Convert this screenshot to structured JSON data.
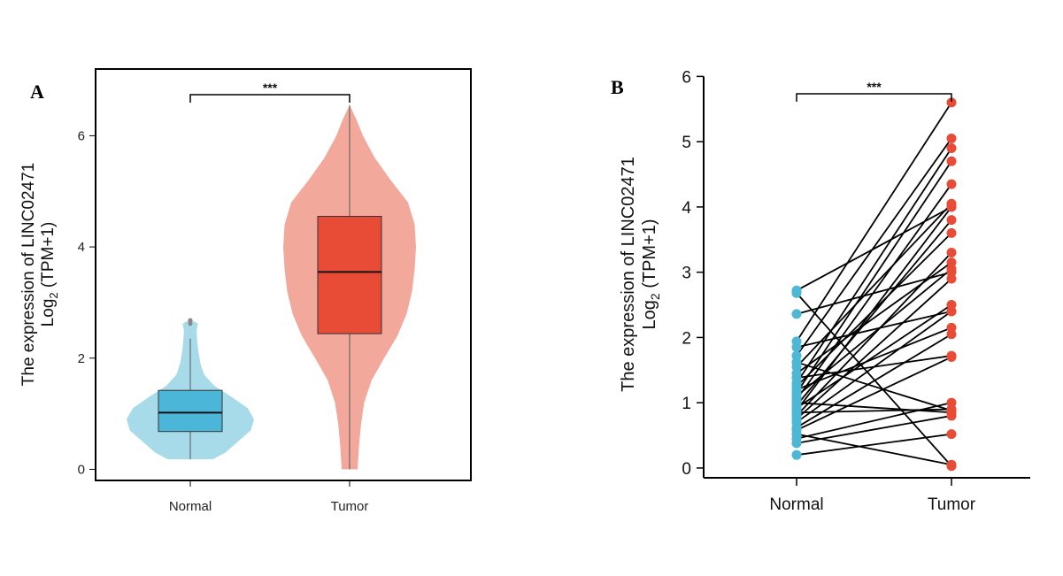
{
  "chart_data": [
    {
      "panel": "A",
      "type": "violin",
      "ylabel_line1": "The expression of LINC02471",
      "ylabel_line2_prefix": "Log",
      "ylabel_line2_sub": "2",
      "ylabel_line2_suffix": " (TPM+1)",
      "categories": [
        "Normal",
        "Tumor"
      ],
      "ylim": [
        -0.2,
        7.2
      ],
      "yticks": [
        0,
        2,
        4,
        6
      ],
      "significance": "***",
      "groups": [
        {
          "name": "Normal",
          "color_violin": "#a8dbea",
          "color_box": "#4cb6d8",
          "min": 0.18,
          "q1": 0.68,
          "median": 1.02,
          "q3": 1.42,
          "whisker_high": 2.35,
          "outliers": [
            2.62,
            2.68
          ],
          "density": [
            [
              0.18,
              0.35
            ],
            [
              0.3,
              0.55
            ],
            [
              0.5,
              0.75
            ],
            [
              0.7,
              0.95
            ],
            [
              0.9,
              1.0
            ],
            [
              1.1,
              0.9
            ],
            [
              1.3,
              0.65
            ],
            [
              1.5,
              0.38
            ],
            [
              1.7,
              0.22
            ],
            [
              1.9,
              0.16
            ],
            [
              2.1,
              0.13
            ],
            [
              2.3,
              0.11
            ],
            [
              2.5,
              0.1
            ],
            [
              2.62,
              0.12
            ],
            [
              2.7,
              0.0
            ]
          ]
        },
        {
          "name": "Tumor",
          "color_violin": "#f2a89b",
          "color_box": "#e84c36",
          "min": 0.0,
          "q1": 2.44,
          "median": 3.55,
          "q3": 4.55,
          "whisker_high": 6.55,
          "outliers": [],
          "density": [
            [
              0.0,
              0.12
            ],
            [
              0.4,
              0.14
            ],
            [
              0.8,
              0.17
            ],
            [
              1.2,
              0.22
            ],
            [
              1.6,
              0.33
            ],
            [
              2.0,
              0.52
            ],
            [
              2.4,
              0.72
            ],
            [
              2.8,
              0.86
            ],
            [
              3.2,
              0.94
            ],
            [
              3.6,
              0.98
            ],
            [
              4.0,
              1.0
            ],
            [
              4.4,
              0.98
            ],
            [
              4.8,
              0.88
            ],
            [
              5.2,
              0.62
            ],
            [
              5.6,
              0.38
            ],
            [
              6.0,
              0.2
            ],
            [
              6.3,
              0.1
            ],
            [
              6.55,
              0.0
            ]
          ]
        }
      ]
    },
    {
      "panel": "B",
      "type": "paired-scatter",
      "ylabel_line1": "The expression of LINC02471",
      "ylabel_line2_prefix": "Log",
      "ylabel_line2_sub": "2",
      "ylabel_line2_suffix": " (TPM+1)",
      "categories": [
        "Normal",
        "Tumor"
      ],
      "ylim": [
        -0.15,
        6.1
      ],
      "yticks": [
        0,
        1,
        2,
        3,
        4,
        5,
        6
      ],
      "significance": "***",
      "colors": {
        "normal": "#4db8d6",
        "tumor": "#e84c36"
      },
      "pairs": [
        [
          0.2,
          0.52
        ],
        [
          0.38,
          0.8
        ],
        [
          0.45,
          1.0
        ],
        [
          0.52,
          0.05
        ],
        [
          0.58,
          1.7
        ],
        [
          0.62,
          2.05
        ],
        [
          0.7,
          2.4
        ],
        [
          0.75,
          2.9
        ],
        [
          0.8,
          3.3
        ],
        [
          0.85,
          0.9
        ],
        [
          0.88,
          4.0
        ],
        [
          0.92,
          2.5
        ],
        [
          0.96,
          3.8
        ],
        [
          1.0,
          0.85
        ],
        [
          1.05,
          4.35
        ],
        [
          1.1,
          3.05
        ],
        [
          1.15,
          4.7
        ],
        [
          1.2,
          2.15
        ],
        [
          1.25,
          3.6
        ],
        [
          1.3,
          4.9
        ],
        [
          1.38,
          1.72
        ],
        [
          1.45,
          3.15
        ],
        [
          1.55,
          4.05
        ],
        [
          1.62,
          0.88
        ],
        [
          1.72,
          5.05
        ],
        [
          1.85,
          2.4
        ],
        [
          1.94,
          5.6
        ],
        [
          2.36,
          3.0
        ],
        [
          2.68,
          0.03
        ],
        [
          2.72,
          4.0
        ]
      ]
    }
  ]
}
